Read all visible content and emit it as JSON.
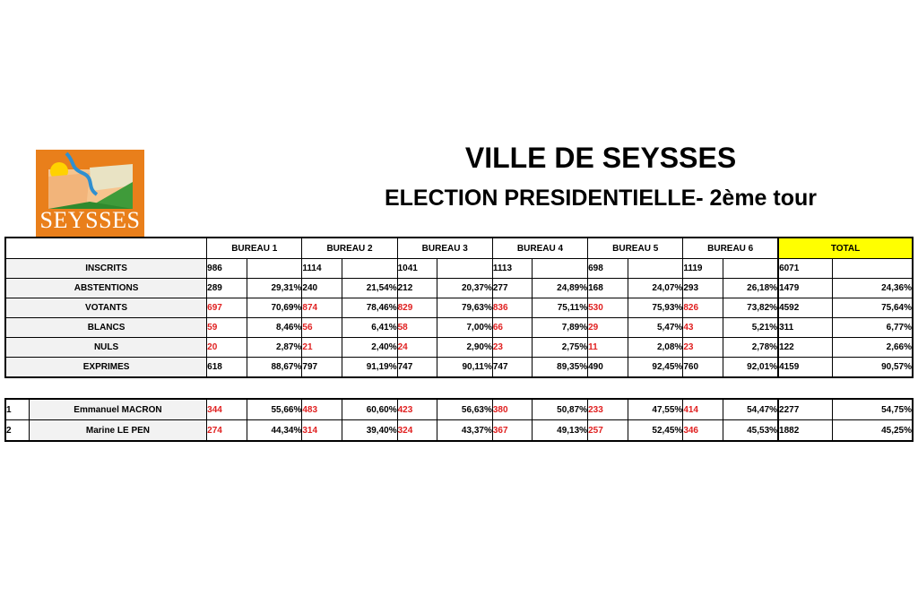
{
  "logo": {
    "text": "SEYSSES"
  },
  "header": {
    "title": "VILLE DE SEYSSES",
    "subtitle": "ELECTION PRESIDENTIELLE- 2ème tour"
  },
  "bureaus": [
    "BUREAU 1",
    "BUREAU 2",
    "BUREAU 3",
    "BUREAU 4",
    "BUREAU 5",
    "BUREAU 6"
  ],
  "total_label": "TOTAL",
  "rows": [
    {
      "label": "INSCRITS",
      "red": false,
      "cells": [
        [
          "986",
          ""
        ],
        [
          "1114",
          ""
        ],
        [
          "1041",
          ""
        ],
        [
          "1113",
          ""
        ],
        [
          "698",
          ""
        ],
        [
          "1119",
          ""
        ]
      ],
      "total": [
        "6071",
        ""
      ]
    },
    {
      "label": "ABSTENTIONS",
      "red": false,
      "cells": [
        [
          "289",
          "29,31%"
        ],
        [
          "240",
          "21,54%"
        ],
        [
          "212",
          "20,37%"
        ],
        [
          "277",
          "24,89%"
        ],
        [
          "168",
          "24,07%"
        ],
        [
          "293",
          "26,18%"
        ]
      ],
      "total": [
        "1479",
        "24,36%"
      ]
    },
    {
      "label": "VOTANTS",
      "red": true,
      "cells": [
        [
          "697",
          "70,69%"
        ],
        [
          "874",
          "78,46%"
        ],
        [
          "829",
          "79,63%"
        ],
        [
          "836",
          "75,11%"
        ],
        [
          "530",
          "75,93%"
        ],
        [
          "826",
          "73,82%"
        ]
      ],
      "total": [
        "4592",
        "75,64%"
      ]
    },
    {
      "label": "BLANCS",
      "red": true,
      "cells": [
        [
          "59",
          "8,46%"
        ],
        [
          "56",
          "6,41%"
        ],
        [
          "58",
          "7,00%"
        ],
        [
          "66",
          "7,89%"
        ],
        [
          "29",
          "5,47%"
        ],
        [
          "43",
          "5,21%"
        ]
      ],
      "total": [
        "311",
        "6,77%"
      ]
    },
    {
      "label": "NULS",
      "red": true,
      "cells": [
        [
          "20",
          "2,87%"
        ],
        [
          "21",
          "2,40%"
        ],
        [
          "24",
          "2,90%"
        ],
        [
          "23",
          "2,75%"
        ],
        [
          "11",
          "2,08%"
        ],
        [
          "23",
          "2,78%"
        ]
      ],
      "total": [
        "122",
        "2,66%"
      ]
    },
    {
      "label": "EXPRIMES",
      "red": false,
      "cells": [
        [
          "618",
          "88,67%"
        ],
        [
          "797",
          "91,19%"
        ],
        [
          "747",
          "90,11%"
        ],
        [
          "747",
          "89,35%"
        ],
        [
          "490",
          "92,45%"
        ],
        [
          "760",
          "92,01%"
        ]
      ],
      "total": [
        "4159",
        "90,57%"
      ]
    }
  ],
  "candidates": [
    {
      "index": "1",
      "name": "Emmanuel MACRON",
      "cells": [
        [
          "344",
          "55,66%"
        ],
        [
          "483",
          "60,60%"
        ],
        [
          "423",
          "56,63%"
        ],
        [
          "380",
          "50,87%"
        ],
        [
          "233",
          "47,55%"
        ],
        [
          "414",
          "54,47%"
        ]
      ],
      "total": [
        "2277",
        "54,75%"
      ]
    },
    {
      "index": "2",
      "name": "Marine LE PEN",
      "cells": [
        [
          "274",
          "44,34%"
        ],
        [
          "314",
          "39,40%"
        ],
        [
          "324",
          "43,37%"
        ],
        [
          "367",
          "49,13%"
        ],
        [
          "257",
          "52,45%"
        ],
        [
          "346",
          "45,53%"
        ]
      ],
      "total": [
        "1882",
        "45,25%"
      ]
    }
  ],
  "colors": {
    "accent_red": "#e02020",
    "total_header_bg": "#ffff00",
    "logo_bg": "#e97f1b"
  }
}
